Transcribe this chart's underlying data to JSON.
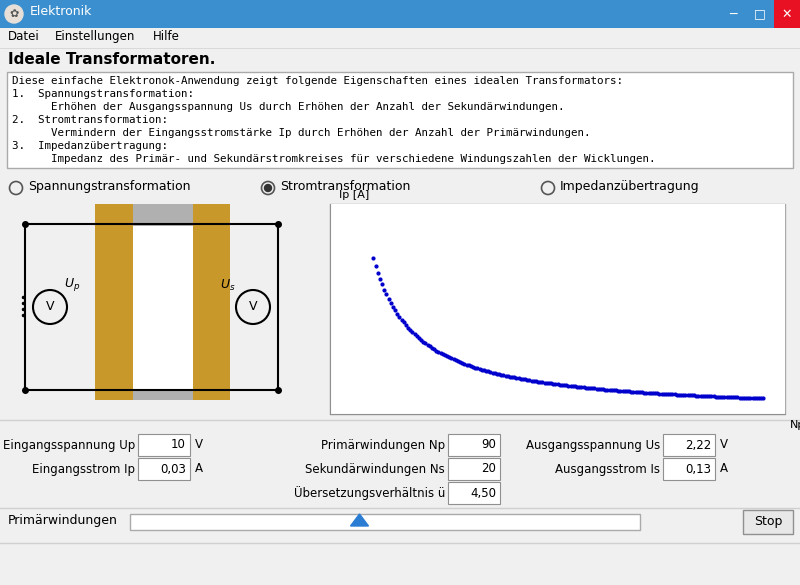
{
  "title_bar_text": "Elektronik",
  "title_bar_bg": "#3c8fce",
  "window_bg": "#f0f0f0",
  "menu_items": [
    "Datei",
    "Einstellungen",
    "Hilfe"
  ],
  "heading": "Ideale Transformatoren.",
  "desc_line1": "Diese einfache Elektronok-Anwendung zeigt folgende Eigenschaften eines idealen Transformators:",
  "desc_line2": "1.  Spannungstransformation:",
  "desc_line3": "      Erhöhen der Ausgangsspannung Us durch Erhöhen der Anzahl der Sekundärwindungen.",
  "desc_line4": "2.  Stromtransformation:",
  "desc_line5": "      Vermindern der Eingangsstromstärke Ip durch Erhöhen der Anzahl der Primärwindungen.",
  "desc_line6": "3.  Impedanzübertragung:",
  "desc_line7": "      Impedanz des Primär- und Sekundärstromkreises für verschiedene Windungszahlen der Wicklungen.",
  "radio_options": [
    "Spannungstransformation",
    "Stromtransformation",
    "Impedanzübertragung"
  ],
  "radio_selected": 1,
  "graph_ylabel": "Ip [A]",
  "graph_xlabel": "Np",
  "graph_dot_color": "#0000cc",
  "slider_label": "Primärwindungen",
  "slider_value": 0.45,
  "stop_button_text": "Stop",
  "fields_left": [
    {
      "label": "Eingangsspannung Up",
      "value": "10",
      "unit": "V"
    },
    {
      "label": "Eingangsstrom Ip",
      "value": "0,03",
      "unit": "A"
    }
  ],
  "fields_mid": [
    {
      "label": "Primärwindungen Np",
      "value": "90",
      "unit": ""
    },
    {
      "label": "Sekundärwindungen Ns",
      "value": "20",
      "unit": ""
    },
    {
      "label": "Übersetzungsverhältnis ü",
      "value": "4,50",
      "unit": ""
    }
  ],
  "fields_right": [
    {
      "label": "Ausgangsspannung Us",
      "value": "2,22",
      "unit": "V"
    },
    {
      "label": "Ausgangsstrom Is",
      "value": "0,13",
      "unit": "A"
    }
  ]
}
